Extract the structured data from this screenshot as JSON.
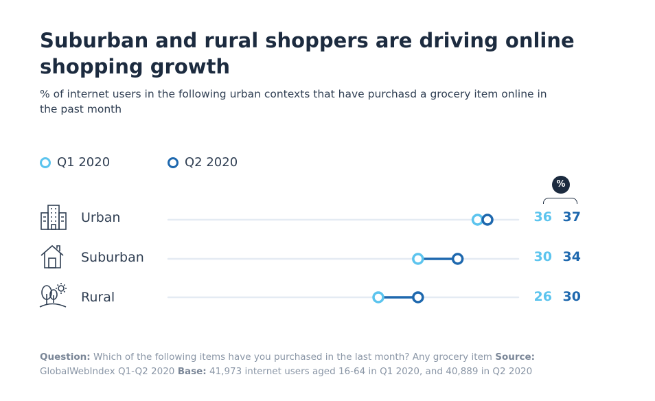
{
  "chart_data": {
    "type": "dumbbell",
    "title": "Suburban and rural shoppers are driving online shopping growth",
    "subtitle": "% of internet users in the following urban contexts that have purchasd a grocery item online in the past month",
    "unit_badge": "%",
    "legend": [
      {
        "name": "Q1 2020",
        "color": "#5cc4ee"
      },
      {
        "name": "Q2 2020",
        "color": "#1e68ae"
      }
    ],
    "categories": [
      "Urban",
      "Suburban",
      "Rural"
    ],
    "series": [
      {
        "name": "Q1 2020",
        "values": [
          36,
          30,
          26
        ]
      },
      {
        "name": "Q2 2020",
        "values": [
          37,
          34,
          30
        ]
      }
    ],
    "value_labels": [
      [
        "36",
        "37"
      ],
      [
        "30",
        "34"
      ],
      [
        "26",
        "30"
      ]
    ],
    "icons": [
      "building-icon",
      "house-icon",
      "tree-sun-icon"
    ]
  },
  "colors": {
    "q1": "#5cc4ee",
    "q2": "#1e68ae",
    "track": "#e4ebf3",
    "title": "#1c2b3f"
  },
  "footnote": {
    "question_label": "Question:",
    "question_text": "Which of the following items have you purchased in the last month? Any grocery item",
    "source_label": "Source:",
    "source_text": "GlobalWebIndex Q1-Q2 2020",
    "base_label": "Base:",
    "base_text": "41,973 internet users aged 16-64 in Q1 2020, and 40,889 in Q2 2020"
  }
}
